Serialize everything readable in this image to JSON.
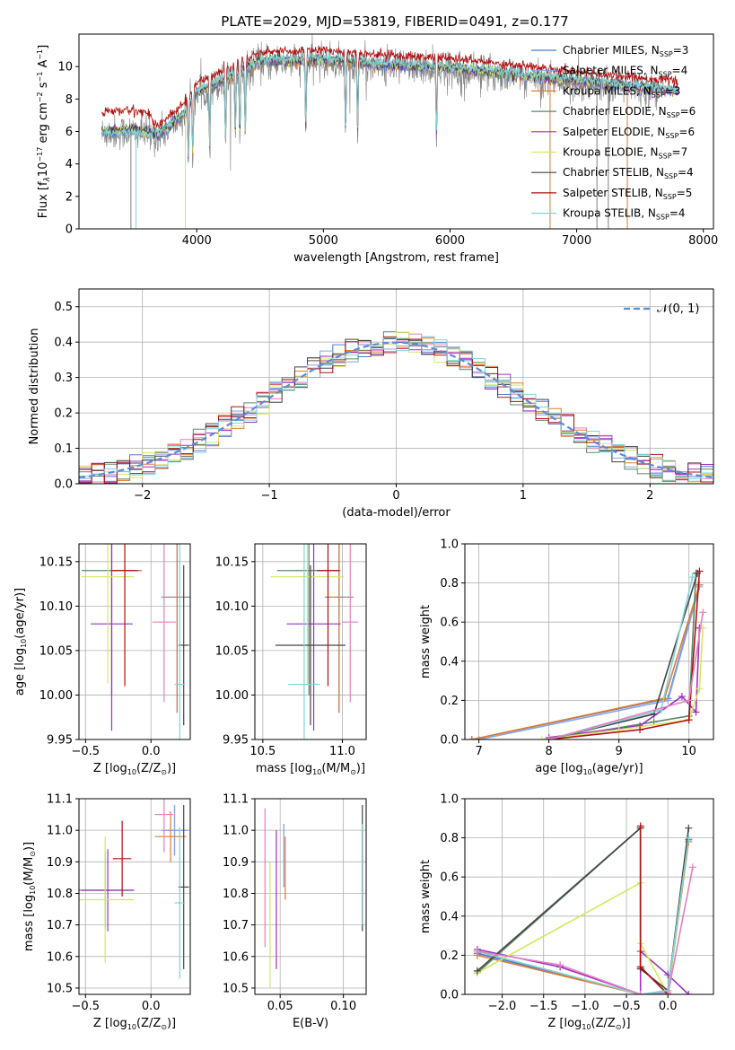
{
  "figure_title": "PLATE=2029, MJD=53819, FIBERID=0491, z=0.177",
  "legend_html": [
    "Chabrier MILES, N<tspan font-size='8' dy='3'>SSP</tspan><tspan dy='-3'>=3</tspan>",
    "Salpeter MILES, N<tspan font-size='8' dy='3'>SSP</tspan><tspan dy='-3'>=4</tspan>",
    "Kroupa MILES, N<tspan font-size='8' dy='3'>SSP</tspan><tspan dy='-3'>=3</tspan>",
    "Chabrier ELODIE, N<tspan font-size='8' dy='3'>SSP</tspan><tspan dy='-3'>=6</tspan>",
    "Salpeter ELODIE, N<tspan font-size='8' dy='3'>SSP</tspan><tspan dy='-3'>=6</tspan>",
    "Kroupa ELODIE, N<tspan font-size='8' dy='3'>SSP</tspan><tspan dy='-3'>=7</tspan>",
    "Chabrier STELIB, N<tspan font-size='8' dy='3'>SSP</tspan><tspan dy='-3'>=4</tspan>",
    "Salpeter STELIB, N<tspan font-size='8' dy='3'>SSP</tspan><tspan dy='-3'>=5</tspan>",
    "Kroupa STELIB, N<tspan font-size='8' dy='3'>SSP</tspan><tspan dy='-3'>=4</tspan>"
  ],
  "models": [
    {
      "name": "Chabrier MILES",
      "nssp": 3,
      "color": "#4f79d6"
    },
    {
      "name": "Salpeter MILES",
      "nssp": 4,
      "color": "#8aa6e0"
    },
    {
      "name": "Kroupa MILES",
      "nssp": 3,
      "color": "#e07b2e"
    },
    {
      "name": "Chabrier ELODIE",
      "nssp": 6,
      "color": "#5a8a6a"
    },
    {
      "name": "Salpeter ELODIE",
      "nssp": 6,
      "color": "#9b30c0"
    },
    {
      "name": "Kroupa ELODIE",
      "nssp": 7,
      "color": "#d4e860"
    },
    {
      "name": "Chabrier STELIB",
      "nssp": 4,
      "color": "#444444"
    },
    {
      "name": "Salpeter STELIB",
      "nssp": 5,
      "color": "#b01010"
    },
    {
      "name": "Kroupa STELIB",
      "nssp": 4,
      "color": "#7fd3d8"
    }
  ],
  "chart_data": [
    {
      "type": "line",
      "id": "spectrum",
      "title": "PLATE=2029, MJD=53819, FIBERID=0491, z=0.177",
      "xlabel": "wavelength [Angstrom, rest frame]",
      "ylabel": "Flux [f<tspan font-style='italic' font-size='9' dy='3'>λ</tspan><tspan dy='-3'>10</tspan><tspan font-size='8' dy='-5'>−17</tspan><tspan dy='5'> erg cm</tspan><tspan font-size='8' dy='-5'>−2</tspan><tspan dy='5'> s</tspan><tspan font-size='8' dy='-5'>−1</tspan><tspan dy='5'> A</tspan><tspan font-size='8' dy='-5'>−1</tspan><tspan dy='5'>]</tspan>",
      "xlim": [
        3070,
        8080
      ],
      "ylim": [
        0,
        12
      ],
      "xticks": [
        4000,
        5000,
        6000,
        7000,
        8000
      ],
      "yticks": [
        0,
        2,
        4,
        6,
        8,
        10
      ],
      "continuum_knots": [
        [
          3250,
          5.9
        ],
        [
          3500,
          6.0
        ],
        [
          3700,
          5.7
        ],
        [
          3900,
          7.0
        ],
        [
          4000,
          8.3
        ],
        [
          4300,
          9.4
        ],
        [
          4500,
          10.2
        ],
        [
          5000,
          10.3
        ],
        [
          5500,
          10.0
        ],
        [
          6000,
          9.8
        ],
        [
          6500,
          9.4
        ],
        [
          7000,
          9.0
        ],
        [
          7500,
          8.6
        ],
        [
          7800,
          8.4
        ]
      ],
      "data_range": [
        3250,
        7650
      ],
      "model_range": [
        3250,
        7800
      ],
      "absorption_lines": [
        3934,
        3969,
        4102,
        4227,
        4304,
        4340,
        4383,
        4861,
        5175,
        5270,
        5893
      ]
    },
    {
      "type": "line",
      "id": "residuals",
      "xlabel": "(data-model)/error",
      "ylabel": "Normed distribution",
      "xlim": [
        -2.5,
        2.5
      ],
      "ylim": [
        0,
        0.55
      ],
      "xticks": [
        -2,
        -1,
        0,
        1,
        2
      ],
      "yticks": [
        0.0,
        0.1,
        0.2,
        0.3,
        0.4,
        0.5
      ],
      "gaussian_label": "𝒩(0, 1)",
      "bin_width": 0.1
    },
    {
      "type": "scatter",
      "id": "age_vs_Z",
      "xlabel": "Z [log<tspan font-size='8' dy='3'>10</tspan><tspan dy='-3'>(Z/Z</tspan><tspan font-size='8' dy='3'>⊙</tspan><tspan dy='-3'>)]</tspan>",
      "ylabel": "age  [log<tspan font-size='8' dy='3'>10</tspan><tspan dy='-3'>(age/yr)]</tspan>",
      "xlim": [
        -0.55,
        0.3
      ],
      "ylim": [
        9.95,
        10.17
      ],
      "xticks": [
        -0.5,
        0.0
      ],
      "yticks": [
        9.95,
        10.0,
        10.05,
        10.1,
        10.15
      ],
      "points": [
        {
          "m": 0,
          "x": 0.2,
          "y": 10.11,
          "xe": 0.12,
          "ye": 0.13
        },
        {
          "m": 1,
          "x": 0.2,
          "y": 10.11,
          "xe": 0.12,
          "ye": 0.13
        },
        {
          "m": 2,
          "x": 0.2,
          "y": 10.11,
          "xe": 0.12,
          "ye": 0.13
        },
        {
          "m": 3,
          "x": -0.3,
          "y": 10.14,
          "xe": 0.23,
          "ye": 0.14
        },
        {
          "m": 4,
          "x": -0.3,
          "y": 10.08,
          "xe": 0.16,
          "ye": 0.12
        },
        {
          "m": 5,
          "x": -0.33,
          "y": 10.133,
          "xe": 0.2,
          "ye": 0.12
        },
        {
          "m": 6,
          "x": 0.25,
          "y": 10.056,
          "xe": 0.04,
          "ye": 0.09
        },
        {
          "m": 7,
          "x": -0.2,
          "y": 10.14,
          "xe": 0.1,
          "ye": 0.13
        },
        {
          "m": 8,
          "x": 0.22,
          "y": 10.012,
          "xe": 0.04,
          "ye": 0.21
        }
      ],
      "extra_points": [
        {
          "color": "#e67fbf",
          "x": 0.1,
          "y": 10.082,
          "xe": 0.09,
          "ye": 0.09
        }
      ]
    },
    {
      "type": "scatter",
      "id": "age_vs_mass",
      "xlabel": "mass [log<tspan font-size='8' dy='3'>10</tspan><tspan dy='-3'>(M/M</tspan><tspan font-size='8' dy='3'>⊙</tspan><tspan dy='-3'>)]</tspan>",
      "ylabel": "",
      "xlim": [
        10.45,
        11.15
      ],
      "ylim": [
        9.95,
        10.17
      ],
      "xticks": [
        10.5,
        11.0
      ],
      "yticks": [
        9.95,
        10.0,
        10.05,
        10.1,
        10.15
      ],
      "points": [
        {
          "m": 0,
          "x": 10.98,
          "y": 10.11,
          "xe": 0.09,
          "ye": 0.13
        },
        {
          "m": 1,
          "x": 10.98,
          "y": 10.11,
          "xe": 0.09,
          "ye": 0.13
        },
        {
          "m": 2,
          "x": 10.98,
          "y": 10.11,
          "xe": 0.09,
          "ye": 0.13
        },
        {
          "m": 3,
          "x": 10.79,
          "y": 10.14,
          "xe": 0.2,
          "ye": 0.14
        },
        {
          "m": 4,
          "x": 10.82,
          "y": 10.08,
          "xe": 0.17,
          "ye": 0.12
        },
        {
          "m": 5,
          "x": 10.78,
          "y": 10.133,
          "xe": 0.23,
          "ye": 0.12
        },
        {
          "m": 6,
          "x": 10.8,
          "y": 10.056,
          "xe": 0.22,
          "ye": 0.09
        },
        {
          "m": 7,
          "x": 10.91,
          "y": 10.14,
          "xe": 0.07,
          "ye": 0.13
        },
        {
          "m": 8,
          "x": 10.76,
          "y": 10.012,
          "xe": 0.1,
          "ye": 0.21
        }
      ],
      "extra_points": [
        {
          "color": "#e67fbf",
          "x": 11.05,
          "y": 10.082,
          "xe": 0.05,
          "ye": 0.09
        }
      ]
    },
    {
      "type": "line",
      "id": "mass_weight_vs_age",
      "xlabel": "age  [log<tspan font-size='8' dy='3'>10</tspan><tspan dy='-3'>(age/yr)]</tspan>",
      "ylabel": "mass weight",
      "xlim": [
        6.8,
        10.35
      ],
      "ylim": [
        0,
        1
      ],
      "xticks": [
        7,
        8,
        9,
        10
      ],
      "yticks": [
        0.0,
        0.2,
        0.4,
        0.6,
        0.8,
        1.0
      ],
      "series": [
        {
          "m": 0,
          "pts": [
            [
              6.9,
              0.0
            ],
            [
              9.7,
              0.21
            ],
            [
              10.15,
              0.79
            ]
          ]
        },
        {
          "m": 1,
          "pts": [
            [
              7.0,
              0.0
            ],
            [
              9.7,
              0.2
            ],
            [
              10.15,
              0.78
            ]
          ]
        },
        {
          "m": 2,
          "pts": [
            [
              6.9,
              0.0
            ],
            [
              9.65,
              0.21
            ],
            [
              10.15,
              0.79
            ]
          ]
        },
        {
          "m": 3,
          "pts": [
            [
              8.0,
              0.0
            ],
            [
              9.5,
              0.09
            ],
            [
              10.0,
              0.12
            ],
            [
              10.1,
              0.85
            ]
          ]
        },
        {
          "m": 4,
          "pts": [
            [
              8.0,
              0.01
            ],
            [
              9.3,
              0.07
            ],
            [
              9.9,
              0.22
            ],
            [
              10.1,
              0.14
            ],
            [
              10.15,
              0.57
            ]
          ]
        },
        {
          "m": 5,
          "pts": [
            [
              7.9,
              0.0
            ],
            [
              9.0,
              0.05
            ],
            [
              10.0,
              0.1
            ],
            [
              10.15,
              0.26
            ],
            [
              10.2,
              0.57
            ]
          ]
        },
        {
          "m": 6,
          "pts": [
            [
              8.0,
              0.0
            ],
            [
              9.5,
              0.13
            ],
            [
              10.12,
              0.85
            ]
          ]
        },
        {
          "m": 7,
          "pts": [
            [
              8.0,
              0.0
            ],
            [
              9.3,
              0.05
            ],
            [
              10.0,
              0.1
            ],
            [
              10.15,
              0.86
            ]
          ]
        },
        {
          "m": 8,
          "pts": [
            [
              8.0,
              0.0
            ],
            [
              9.6,
              0.15
            ],
            [
              10.05,
              0.83
            ]
          ]
        },
        {
          "color": "#e67fbf",
          "pts": [
            [
              8.0,
              0.0
            ],
            [
              10.0,
              0.2
            ],
            [
              10.2,
              0.65
            ]
          ]
        }
      ]
    },
    {
      "type": "scatter",
      "id": "mass_vs_Z",
      "xlabel": "Z [log<tspan font-size='8' dy='3'>10</tspan><tspan dy='-3'>(Z/Z</tspan><tspan font-size='8' dy='3'>⊙</tspan><tspan dy='-3'>)]</tspan>",
      "ylabel": "mass [log<tspan font-size='8' dy='3'>10</tspan><tspan dy='-3'>(M/M</tspan><tspan font-size='8' dy='3'>⊙</tspan><tspan dy='-3'>)]</tspan>",
      "xlim": [
        -0.55,
        0.3
      ],
      "ylim": [
        10.48,
        11.1
      ],
      "xticks": [
        -0.5,
        0.0
      ],
      "yticks": [
        10.5,
        10.6,
        10.7,
        10.8,
        10.9,
        11.0,
        11.1
      ],
      "points": [
        {
          "m": 0,
          "x": 0.18,
          "y": 11.0,
          "xe": 0.1,
          "ye": 0.08
        },
        {
          "m": 1,
          "x": 0.18,
          "y": 11.0,
          "xe": 0.1,
          "ye": 0.08
        },
        {
          "m": 2,
          "x": 0.15,
          "y": 10.98,
          "xe": 0.12,
          "ye": 0.08
        },
        {
          "m": 3,
          "x": -0.35,
          "y": 10.81,
          "xe": 0.22,
          "ye": 0.12
        },
        {
          "m": 4,
          "x": -0.33,
          "y": 10.81,
          "xe": 0.2,
          "ye": 0.13
        },
        {
          "m": 5,
          "x": -0.35,
          "y": 10.78,
          "xe": 0.22,
          "ye": 0.2
        },
        {
          "m": 6,
          "x": 0.25,
          "y": 10.82,
          "xe": 0.04,
          "ye": 0.26
        },
        {
          "m": 7,
          "x": -0.22,
          "y": 10.91,
          "xe": 0.07,
          "ye": 0.12
        },
        {
          "m": 8,
          "x": 0.22,
          "y": 10.77,
          "xe": 0.04,
          "ye": 0.24
        }
      ],
      "extra_points": [
        {
          "color": "#e67fbf",
          "x": 0.1,
          "y": 11.05,
          "xe": 0.07,
          "ye": 0.12
        }
      ]
    },
    {
      "type": "scatter",
      "id": "mass_vs_ebv",
      "xlabel": "E(B-V)",
      "ylabel": "",
      "xlim": [
        0.03,
        0.118
      ],
      "ylim": [
        10.48,
        11.1
      ],
      "xticks": [
        0.05,
        0.1
      ],
      "yticks": [
        10.5,
        10.6,
        10.7,
        10.8,
        10.9,
        11.0,
        11.1
      ],
      "points": [
        {
          "m": 0,
          "x": 0.053,
          "y": 10.92,
          "xe": 0.0,
          "ye": 0.1
        },
        {
          "m": 1,
          "x": 0.053,
          "y": 10.92,
          "xe": 0.0,
          "ye": 0.1
        },
        {
          "m": 2,
          "x": 0.054,
          "y": 10.88,
          "xe": 0.0,
          "ye": 0.1
        },
        {
          "m": 3,
          "x": 0.115,
          "y": 10.85,
          "xe": 0.0,
          "ye": 0.15
        },
        {
          "m": 4,
          "x": 0.047,
          "y": 10.78,
          "xe": 0.0,
          "ye": 0.22
        },
        {
          "m": 5,
          "x": 0.042,
          "y": 10.7,
          "xe": 0.0,
          "ye": 0.2
        },
        {
          "m": 6,
          "x": 0.115,
          "y": 10.88,
          "xe": 0.0,
          "ye": 0.2
        },
        {
          "m": 7,
          "x": 0.115,
          "y": 10.85,
          "xe": 0.0,
          "ye": 0.15
        },
        {
          "m": 8,
          "x": 0.115,
          "y": 10.86,
          "xe": 0.0,
          "ye": 0.16
        }
      ],
      "extra_points": [
        {
          "color": "#e67fbf",
          "x": 0.038,
          "y": 10.85,
          "xe": 0.0,
          "ye": 0.22
        }
      ]
    },
    {
      "type": "line",
      "id": "mass_weight_vs_Z",
      "xlabel": "Z [log<tspan font-size='8' dy='3'>10</tspan><tspan dy='-3'>(Z/Z</tspan><tspan font-size='8' dy='3'>⊙</tspan><tspan dy='-3'>)]</tspan>",
      "ylabel": "mass weight",
      "xlim": [
        -2.45,
        0.55
      ],
      "ylim": [
        0,
        1
      ],
      "xticks": [
        -2.0,
        -1.5,
        -1.0,
        -0.5,
        0.0
      ],
      "yticks": [
        0.0,
        0.2,
        0.4,
        0.6,
        0.8,
        1.0
      ],
      "series": [
        {
          "m": 0,
          "pts": [
            [
              -2.3,
              0.21
            ],
            [
              -0.33,
              0.0
            ],
            [
              0.0,
              0.0
            ],
            [
              0.25,
              0.79
            ]
          ]
        },
        {
          "m": 1,
          "pts": [
            [
              -2.3,
              0.2
            ],
            [
              -0.33,
              0.0
            ],
            [
              0.0,
              0.01
            ],
            [
              0.25,
              0.8
            ]
          ]
        },
        {
          "m": 2,
          "pts": [
            [
              -2.3,
              0.2
            ],
            [
              -0.33,
              0.0
            ],
            [
              0.0,
              0.0
            ],
            [
              0.25,
              0.78
            ]
          ]
        },
        {
          "m": 3,
          "pts": [
            [
              -2.3,
              0.11
            ],
            [
              -0.33,
              0.85
            ],
            [
              -0.33,
              0.14
            ],
            [
              0.0,
              0.0
            ],
            [
              0.25,
              0.8
            ]
          ]
        },
        {
          "m": 4,
          "pts": [
            [
              -2.3,
              0.23
            ],
            [
              -1.3,
              0.14
            ],
            [
              -0.33,
              0.0
            ],
            [
              -0.33,
              0.22
            ],
            [
              0.0,
              0.1
            ],
            [
              0.25,
              0.0
            ]
          ]
        },
        {
          "m": 5,
          "pts": [
            [
              -2.3,
              0.11
            ],
            [
              -0.33,
              0.57
            ],
            [
              -0.33,
              0.26
            ],
            [
              0.0,
              0.0
            ],
            [
              0.25,
              0.8
            ]
          ]
        },
        {
          "m": 6,
          "pts": [
            [
              -2.3,
              0.12
            ],
            [
              -0.33,
              0.85
            ],
            [
              -0.33,
              0.13
            ],
            [
              0.0,
              0.02
            ],
            [
              0.25,
              0.85
            ]
          ]
        },
        {
          "m": 7,
          "pts": [
            [
              -0.33,
              0.86
            ],
            [
              -0.33,
              0.14
            ],
            [
              0.0,
              0.0
            ],
            [
              0.0,
              0.0
            ]
          ]
        },
        {
          "m": 8,
          "pts": [
            [
              -2.3,
              0.22
            ],
            [
              -0.33,
              0.0
            ],
            [
              0.0,
              0.02
            ],
            [
              0.25,
              0.8
            ]
          ]
        },
        {
          "color": "#e67fbf",
          "pts": [
            [
              -2.3,
              0.22
            ],
            [
              -1.3,
              0.15
            ],
            [
              -0.33,
              0.0
            ],
            [
              0.0,
              0.0
            ],
            [
              0.3,
              0.65
            ]
          ]
        }
      ]
    }
  ]
}
